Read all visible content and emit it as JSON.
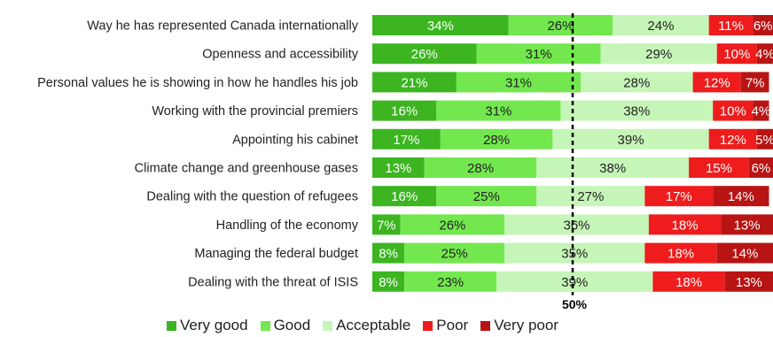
{
  "chart_data": {
    "type": "bar",
    "stacked": true,
    "orientation": "horizontal",
    "categories": [
      "Way he has represented Canada internationally",
      "Openness and accessibility",
      "Personal values he is showing in how he handles his job",
      "Working with the provincial premiers",
      "Appointing his cabinet",
      "Climate change and greenhouse gases",
      "Dealing with the question of refugees",
      "Handling of the economy",
      "Managing the federal budget",
      "Dealing with the threat of ISIS"
    ],
    "series": [
      {
        "name": "Very good",
        "color": "#3cb521",
        "text_color": "#ffffff",
        "values": [
          34,
          26,
          21,
          16,
          17,
          13,
          16,
          7,
          8,
          8
        ]
      },
      {
        "name": "Good",
        "color": "#72e84e",
        "text_color": "#222222",
        "values": [
          26,
          31,
          31,
          31,
          28,
          28,
          25,
          26,
          25,
          23
        ]
      },
      {
        "name": "Acceptable",
        "color": "#c6f5b8",
        "text_color": "#222222",
        "values": [
          24,
          29,
          28,
          38,
          39,
          38,
          27,
          36,
          35,
          39
        ]
      },
      {
        "name": "Poor",
        "color": "#ee1c1c",
        "text_color": "#ffffff",
        "values": [
          11,
          10,
          12,
          10,
          12,
          15,
          17,
          18,
          18,
          18
        ]
      },
      {
        "name": "Very poor",
        "color": "#b81414",
        "text_color": "#ffffff",
        "values": [
          6,
          4,
          7,
          4,
          5,
          6,
          14,
          13,
          14,
          13
        ]
      }
    ],
    "value_suffix": "%",
    "reference_line": {
      "value": 50,
      "label": "50%",
      "style": "dashed"
    },
    "legend_position": "bottom",
    "grid": false
  }
}
